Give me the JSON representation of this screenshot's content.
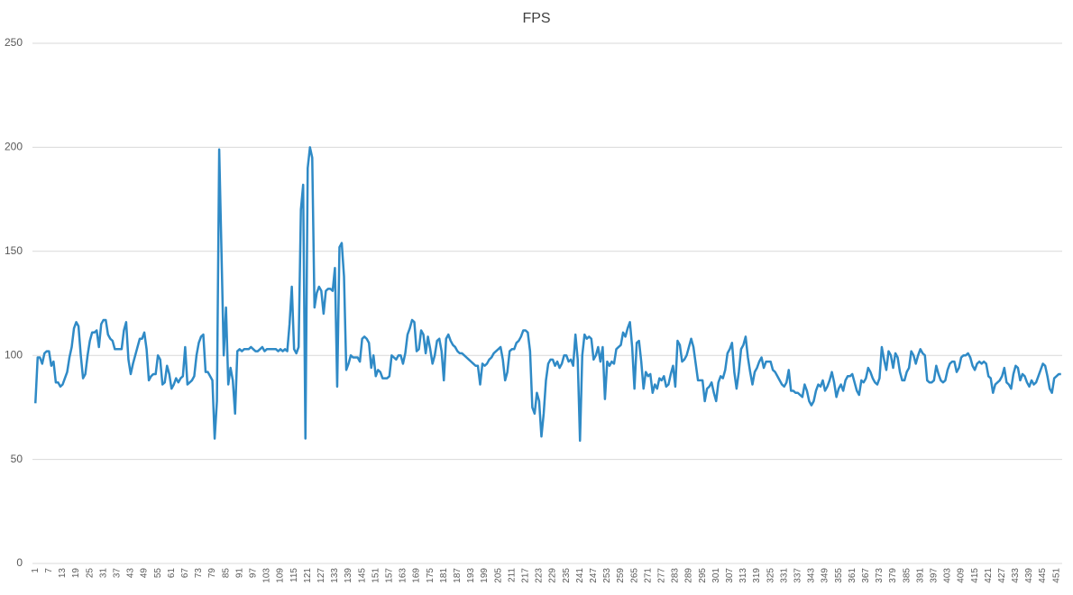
{
  "chart_data": {
    "type": "line",
    "title": "FPS",
    "categories": [
      "1",
      null,
      null,
      null,
      null,
      null,
      "7",
      null,
      null,
      null,
      null,
      null,
      "13",
      null,
      null,
      null,
      null,
      null,
      "19",
      null,
      null,
      null,
      null,
      null,
      "25",
      null,
      null,
      null,
      null,
      null,
      "31",
      null,
      null,
      null,
      null,
      null,
      "37",
      null,
      null,
      null,
      null,
      null,
      "43",
      null,
      null,
      null,
      null,
      null,
      "49",
      null,
      null,
      null,
      null,
      null,
      "55",
      null,
      null,
      null,
      null,
      null,
      "61",
      null,
      null,
      null,
      null,
      null,
      "67",
      null,
      null,
      null,
      null,
      null,
      "73",
      null,
      null,
      null,
      null,
      null,
      "79",
      null,
      null,
      null,
      null,
      null,
      "85",
      null,
      null,
      null,
      null,
      null,
      "91",
      null,
      null,
      null,
      null,
      null,
      "97",
      null,
      null,
      null,
      null,
      null,
      "103",
      null,
      null,
      null,
      null,
      null,
      "109",
      null,
      null,
      null,
      null,
      null,
      "115",
      null,
      null,
      null,
      null,
      null,
      "121",
      null,
      null,
      null,
      null,
      null,
      "127",
      null,
      null,
      null,
      null,
      null,
      "133",
      null,
      null,
      null,
      null,
      null,
      "139",
      null,
      null,
      null,
      null,
      null,
      "145",
      null,
      null,
      null,
      null,
      null,
      "151",
      null,
      null,
      null,
      null,
      null,
      "157",
      null,
      null,
      null,
      null,
      null,
      "163",
      null,
      null,
      null,
      null,
      null,
      "169",
      null,
      null,
      null,
      null,
      null,
      "175",
      null,
      null,
      null,
      null,
      null,
      "181",
      null,
      null,
      null,
      null,
      null,
      "187",
      null,
      null,
      null,
      null,
      null,
      "193",
      null,
      null,
      null,
      null,
      null,
      "199",
      null,
      null,
      null,
      null,
      null,
      "205",
      null,
      null,
      null,
      null,
      null,
      "211",
      null,
      null,
      null,
      null,
      null,
      "217",
      null,
      null,
      null,
      null,
      null,
      "223",
      null,
      null,
      null,
      null,
      null,
      "229",
      null,
      null,
      null,
      null,
      null,
      "235",
      null,
      null,
      null,
      null,
      null,
      "241",
      null,
      null,
      null,
      null,
      null,
      "247",
      null,
      null,
      null,
      null,
      null,
      "253",
      null,
      null,
      null,
      null,
      null,
      "259",
      null,
      null,
      null,
      null,
      null,
      "265",
      null,
      null,
      null,
      null,
      null,
      "271",
      null,
      null,
      null,
      null,
      null,
      "277",
      null,
      null,
      null,
      null,
      null,
      "283",
      null,
      null,
      null,
      null,
      null,
      "289",
      null,
      null,
      null,
      null,
      null,
      "295",
      null,
      null,
      null,
      null,
      null,
      "301",
      null,
      null,
      null,
      null,
      null,
      "307",
      null,
      null,
      null,
      null,
      null,
      "313",
      null,
      null,
      null,
      null,
      null,
      "319",
      null,
      null,
      null,
      null,
      null,
      "325",
      null,
      null,
      null,
      null,
      null,
      "331",
      null,
      null,
      null,
      null,
      null,
      "337",
      null,
      null,
      null,
      null,
      null,
      "343",
      null,
      null,
      null,
      null,
      null,
      "349",
      null,
      null,
      null,
      null,
      null,
      "355",
      null,
      null,
      null,
      null,
      null,
      "361",
      null,
      null,
      null,
      null,
      null,
      "367",
      null,
      null,
      null,
      null,
      null,
      "373",
      null,
      null,
      null,
      null,
      null,
      "379",
      null,
      null,
      null,
      null,
      null,
      "385",
      null,
      null,
      null,
      null,
      null,
      "391",
      null,
      null,
      null,
      null,
      null,
      "397",
      null,
      null,
      null,
      null,
      null,
      "403",
      null,
      null,
      null,
      null,
      null,
      "409",
      null,
      null,
      null,
      null,
      null,
      "415",
      null,
      null,
      null,
      null,
      null,
      "421",
      null,
      null,
      null,
      null,
      null,
      "427",
      null,
      null,
      null,
      null,
      null,
      "433",
      null,
      null,
      null,
      null,
      null,
      "439",
      null,
      null,
      null,
      null,
      null,
      "445",
      null,
      null,
      null,
      null,
      null,
      "451",
      null,
      null
    ],
    "values": [
      77,
      99,
      99,
      96,
      101,
      102,
      102,
      95,
      97,
      87,
      87,
      85,
      86,
      89,
      92,
      99,
      104,
      113,
      116,
      114,
      100,
      89,
      91,
      100,
      107,
      111,
      111,
      112,
      104,
      115,
      117,
      117,
      110,
      108,
      107,
      103,
      103,
      103,
      103,
      112,
      116,
      98,
      91,
      96,
      100,
      104,
      108,
      108,
      111,
      103,
      88,
      90,
      91,
      91,
      100,
      98,
      86,
      87,
      95,
      91,
      84,
      86,
      89,
      87,
      89,
      90,
      104,
      86,
      87,
      88,
      90,
      100,
      106,
      109,
      110,
      92,
      92,
      90,
      88,
      60,
      78,
      199,
      150,
      100,
      123,
      86,
      94,
      88,
      72,
      102,
      103,
      102,
      103,
      103,
      103,
      104,
      103,
      102,
      102,
      103,
      104,
      102,
      103,
      103,
      103,
      103,
      103,
      102,
      103,
      102,
      103,
      102,
      115,
      133,
      103,
      101,
      104,
      170,
      182,
      60,
      190,
      200,
      195,
      123,
      130,
      133,
      131,
      120,
      131,
      132,
      132,
      131,
      142,
      85,
      152,
      154,
      138,
      93,
      96,
      100,
      99,
      99,
      99,
      97,
      108,
      109,
      108,
      106,
      94,
      100,
      90,
      93,
      92,
      89,
      89,
      89,
      90,
      100,
      99,
      98,
      100,
      100,
      96,
      101,
      110,
      113,
      117,
      116,
      102,
      103,
      112,
      110,
      101,
      109,
      103,
      96,
      100,
      107,
      108,
      102,
      88,
      108,
      110,
      107,
      105,
      104,
      102,
      101,
      101,
      100,
      99,
      98,
      97,
      96,
      95,
      95,
      86,
      96,
      95,
      96,
      98,
      99,
      101,
      102,
      103,
      104,
      98,
      88,
      92,
      102,
      103,
      103,
      106,
      107,
      109,
      112,
      112,
      111,
      102,
      75,
      72,
      82,
      78,
      61,
      72,
      88,
      96,
      98,
      98,
      95,
      97,
      94,
      96,
      100,
      100,
      97,
      98,
      95,
      110,
      98,
      59,
      100,
      110,
      108,
      109,
      108,
      98,
      100,
      104,
      97,
      104,
      79,
      97,
      95,
      97,
      96,
      103,
      104,
      105,
      111,
      109,
      113,
      116,
      104,
      84,
      106,
      107,
      97,
      84,
      92,
      90,
      91,
      82,
      86,
      84,
      89,
      88,
      90,
      85,
      86,
      91,
      95,
      85,
      107,
      105,
      97,
      98,
      100,
      104,
      108,
      104,
      96,
      88,
      88,
      88,
      78,
      84,
      85,
      87,
      82,
      78,
      87,
      90,
      89,
      93,
      101,
      103,
      106,
      92,
      84,
      92,
      103,
      105,
      109,
      99,
      92,
      86,
      92,
      94,
      97,
      99,
      94,
      97,
      97,
      97,
      93,
      92,
      90,
      88,
      86,
      85,
      87,
      93,
      83,
      83,
      82,
      82,
      81,
      80,
      86,
      83,
      78,
      76,
      78,
      83,
      86,
      85,
      88,
      83,
      85,
      88,
      92,
      87,
      80,
      84,
      86,
      83,
      88,
      90,
      90,
      91,
      87,
      83,
      81,
      88,
      87,
      89,
      94,
      92,
      89,
      87,
      86,
      89,
      104,
      98,
      93,
      102,
      100,
      94,
      101,
      99,
      92,
      88,
      88,
      92,
      94,
      102,
      100,
      96,
      100,
      103,
      101,
      100,
      88,
      87,
      87,
      88,
      95,
      91,
      88,
      87,
      88,
      93,
      96,
      97,
      97,
      92,
      94,
      99,
      100,
      100,
      101,
      99,
      95,
      93,
      96,
      97,
      96,
      97,
      96,
      90,
      89,
      82,
      86,
      87,
      88,
      90,
      94,
      87,
      86,
      84,
      91,
      95,
      94,
      88,
      91,
      90,
      87,
      85,
      88,
      86,
      87,
      90,
      93,
      96,
      95,
      90,
      84,
      82,
      89,
      90,
      91,
      91
    ],
    "color": "#2f8ac6",
    "ylim": [
      0,
      250
    ],
    "yticks": [
      0,
      50,
      100,
      150,
      200,
      250
    ],
    "grid": true
  }
}
